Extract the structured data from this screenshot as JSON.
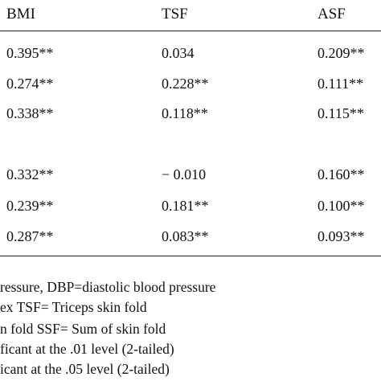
{
  "table": {
    "headers": [
      "BMI",
      "TSF",
      "ASF"
    ],
    "rows": [
      [
        "0.395**",
        "0.034",
        "0.209**"
      ],
      [
        "0.274**",
        "0.228**",
        "0.111**"
      ],
      [
        "0.338**",
        "0.118**",
        "0.115**"
      ],
      [
        "0.332**",
        "− 0.010",
        "0.160**"
      ],
      [
        "0.239**",
        "0.181**",
        "0.100**"
      ],
      [
        "0.287**",
        "0.083**",
        "0.093**"
      ]
    ]
  },
  "footnotes": [
    "ressure, DBP=diastolic blood pressure",
    "ex     TSF= Triceps skin fold",
    "n fold     SSF= Sum of skin fold",
    "ficant at the .01 level (2-tailed)",
    "icant at the .05 level (2-tailed)"
  ]
}
